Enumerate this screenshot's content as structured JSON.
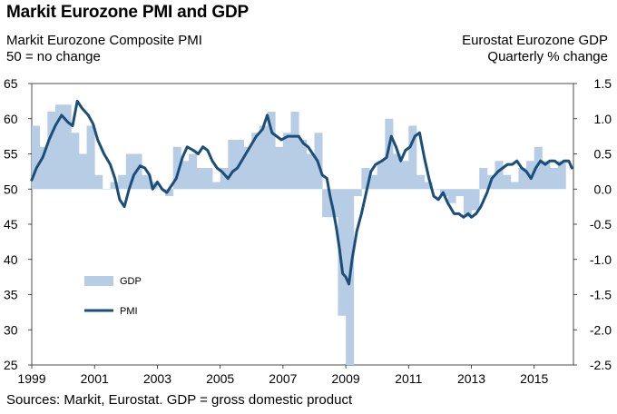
{
  "header": {
    "title": "Markit Eurozone PMI and GDP",
    "left_label_line1": "Markit Eurozone Composite PMI",
    "left_label_line2": "50 = no change",
    "right_label_line1": "Eurostat Eurozone GDP",
    "right_label_line2": "Quarterly % change"
  },
  "footer": {
    "source": "Sources: Markit, Eurostat. GDP = gross domestic product"
  },
  "chart_data": {
    "type": "bar+line",
    "title": "Markit Eurozone PMI and GDP",
    "x_tick_labels": [
      "1999",
      "2001",
      "2003",
      "2005",
      "2007",
      "2009",
      "2011",
      "2013",
      "2015"
    ],
    "x_tick_years": [
      1999,
      2001,
      2003,
      2005,
      2007,
      2009,
      2011,
      2013,
      2015
    ],
    "x_range": [
      1999,
      2016.25
    ],
    "left_axis": {
      "label": "Markit Eurozone Composite PMI",
      "range": [
        25,
        65
      ],
      "ticks": [
        25,
        30,
        35,
        40,
        45,
        50,
        55,
        60,
        65
      ]
    },
    "right_axis": {
      "label": "Eurostat Eurozone GDP Quarterly % change",
      "range": [
        -2.5,
        1.5
      ],
      "ticks": [
        "1.5",
        "1.0",
        "0.5",
        "0.0",
        "-0.5",
        "-1.0",
        "-1.5",
        "-2.0",
        "-2.5"
      ],
      "tick_values": [
        1.5,
        1.0,
        0.5,
        0.0,
        -0.5,
        -1.0,
        -1.5,
        -2.0,
        -2.5
      ]
    },
    "legend": [
      {
        "name": "GDP",
        "style": "bar",
        "color": "#b7cde6"
      },
      {
        "name": "PMI",
        "style": "line",
        "color": "#1b4f7a"
      }
    ],
    "gdp_series": {
      "name": "GDP",
      "axis": "right",
      "start": 1999.0,
      "step": 0.25,
      "values": [
        0.9,
        0.6,
        1.1,
        1.2,
        1.2,
        0.8,
        0.5,
        0.9,
        0.2,
        0.0,
        0.1,
        0.2,
        0.5,
        0.5,
        0.2,
        0.1,
        0.0,
        -0.1,
        0.6,
        0.4,
        0.5,
        0.3,
        0.3,
        0.1,
        0.3,
        0.7,
        0.7,
        0.6,
        0.8,
        0.9,
        1.1,
        0.6,
        0.8,
        1.1,
        0.7,
        0.5,
        0.8,
        -0.4,
        -0.4,
        -1.8,
        -2.5,
        -0.1,
        0.3,
        0.2,
        0.4,
        1.0,
        0.5,
        0.4,
        0.9,
        0.2,
        0.1,
        0.0,
        -0.1,
        -0.2,
        -0.1,
        -0.4,
        -0.3,
        0.3,
        0.2,
        0.4,
        0.2,
        0.1,
        0.3,
        0.4,
        0.6,
        0.4,
        0.3,
        0.4
      ],
      "color": "#b7cde6"
    },
    "pmi_series": {
      "name": "PMI",
      "axis": "left",
      "color": "#1b4f7a",
      "points": [
        [
          1999.0,
          51.3
        ],
        [
          1999.15,
          53.0
        ],
        [
          1999.35,
          54.5
        ],
        [
          1999.55,
          57.0
        ],
        [
          1999.75,
          59.0
        ],
        [
          1999.95,
          60.5
        ],
        [
          2000.15,
          59.5
        ],
        [
          2000.3,
          59.0
        ],
        [
          2000.45,
          62.5
        ],
        [
          2000.6,
          61.5
        ],
        [
          2000.8,
          60.5
        ],
        [
          2000.95,
          59.3
        ],
        [
          2001.1,
          57.0
        ],
        [
          2001.3,
          55.0
        ],
        [
          2001.5,
          53.5
        ],
        [
          2001.65,
          51.5
        ],
        [
          2001.8,
          48.5
        ],
        [
          2001.95,
          47.5
        ],
        [
          2002.1,
          50.0
        ],
        [
          2002.25,
          52.0
        ],
        [
          2002.45,
          53.3
        ],
        [
          2002.6,
          53.0
        ],
        [
          2002.75,
          52.0
        ],
        [
          2002.85,
          50.0
        ],
        [
          2003.0,
          51.0
        ],
        [
          2003.15,
          50.0
        ],
        [
          2003.3,
          49.5
        ],
        [
          2003.45,
          50.5
        ],
        [
          2003.6,
          51.5
        ],
        [
          2003.8,
          54.5
        ],
        [
          2003.95,
          56.0
        ],
        [
          2004.15,
          55.5
        ],
        [
          2004.3,
          55.0
        ],
        [
          2004.45,
          56.0
        ],
        [
          2004.6,
          55.5
        ],
        [
          2004.75,
          54.0
        ],
        [
          2004.9,
          53.0
        ],
        [
          2005.05,
          52.5
        ],
        [
          2005.25,
          51.5
        ],
        [
          2005.4,
          52.5
        ],
        [
          2005.55,
          53.0
        ],
        [
          2005.75,
          54.5
        ],
        [
          2005.95,
          56.0
        ],
        [
          2006.15,
          57.5
        ],
        [
          2006.35,
          58.5
        ],
        [
          2006.5,
          60.5
        ],
        [
          2006.65,
          58.0
        ],
        [
          2006.8,
          57.5
        ],
        [
          2006.95,
          57.0
        ],
        [
          2007.15,
          57.5
        ],
        [
          2007.35,
          57.5
        ],
        [
          2007.5,
          57.5
        ],
        [
          2007.65,
          56.5
        ],
        [
          2007.8,
          56.0
        ],
        [
          2007.95,
          55.0
        ],
        [
          2008.1,
          54.0
        ],
        [
          2008.25,
          52.0
        ],
        [
          2008.4,
          51.5
        ],
        [
          2008.5,
          49.0
        ],
        [
          2008.6,
          47.0
        ],
        [
          2008.7,
          44.5
        ],
        [
          2008.8,
          41.5
        ],
        [
          2008.9,
          38.0
        ],
        [
          2009.0,
          37.5
        ],
        [
          2009.1,
          36.5
        ],
        [
          2009.2,
          40.0
        ],
        [
          2009.35,
          44.0
        ],
        [
          2009.5,
          46.5
        ],
        [
          2009.65,
          49.5
        ],
        [
          2009.8,
          52.5
        ],
        [
          2009.95,
          53.5
        ],
        [
          2010.15,
          54.0
        ],
        [
          2010.3,
          54.5
        ],
        [
          2010.45,
          57.5
        ],
        [
          2010.6,
          56.0
        ],
        [
          2010.75,
          54.0
        ],
        [
          2010.9,
          55.5
        ],
        [
          2011.05,
          56.0
        ],
        [
          2011.2,
          57.5
        ],
        [
          2011.35,
          58.0
        ],
        [
          2011.5,
          54.5
        ],
        [
          2011.65,
          51.5
        ],
        [
          2011.8,
          49.0
        ],
        [
          2011.95,
          48.5
        ],
        [
          2012.1,
          49.5
        ],
        [
          2012.25,
          48.0
        ],
        [
          2012.45,
          46.5
        ],
        [
          2012.6,
          46.5
        ],
        [
          2012.75,
          46.0
        ],
        [
          2012.9,
          46.5
        ],
        [
          2013.0,
          46.0
        ],
        [
          2013.15,
          46.5
        ],
        [
          2013.3,
          47.5
        ],
        [
          2013.5,
          49.5
        ],
        [
          2013.65,
          51.5
        ],
        [
          2013.85,
          52.5
        ],
        [
          2014.0,
          53.0
        ],
        [
          2014.15,
          53.5
        ],
        [
          2014.3,
          53.5
        ],
        [
          2014.45,
          54.0
        ],
        [
          2014.6,
          53.0
        ],
        [
          2014.75,
          52.5
        ],
        [
          2014.9,
          51.5
        ],
        [
          2015.05,
          53.0
        ],
        [
          2015.2,
          54.0
        ],
        [
          2015.35,
          53.5
        ],
        [
          2015.5,
          54.0
        ],
        [
          2015.65,
          54.0
        ],
        [
          2015.8,
          53.5
        ],
        [
          2015.95,
          54.0
        ],
        [
          2016.1,
          54.0
        ],
        [
          2016.2,
          53.0
        ]
      ]
    }
  }
}
